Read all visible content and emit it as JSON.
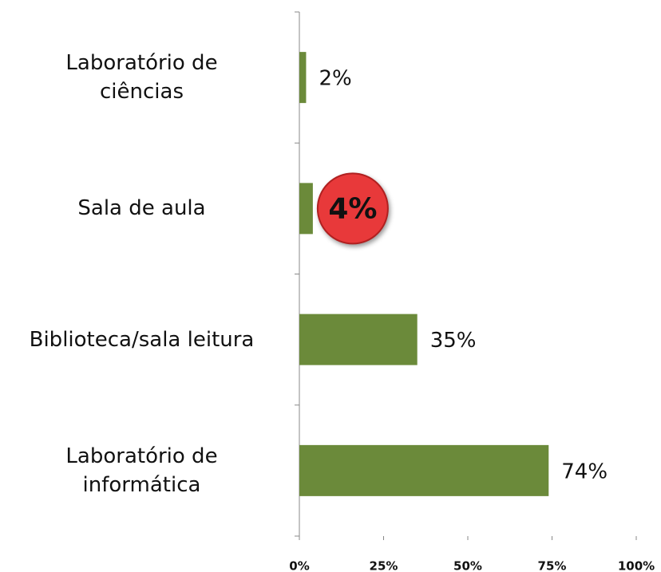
{
  "chart_data": {
    "type": "barh",
    "categories": [
      "Laboratório de\nciências",
      "Sala de aula",
      "Biblioteca/sala leitura",
      "Laboratório de\ninformática"
    ],
    "values": [
      2,
      4,
      35,
      74
    ],
    "value_labels": [
      "2%",
      "4%",
      "35%",
      "74%"
    ],
    "color": "#6b8a3a",
    "highlight": 1,
    "highlight_color": "#e8393a",
    "xlim": [
      0,
      100
    ],
    "xticks": [
      {
        "value": 0,
        "label": "0%"
      },
      {
        "value": 25,
        "label": "25%"
      },
      {
        "value": 50,
        "label": "50%"
      },
      {
        "value": 75,
        "label": "75%"
      },
      {
        "value": 100,
        "label": "100%"
      }
    ],
    "grid": false
  }
}
